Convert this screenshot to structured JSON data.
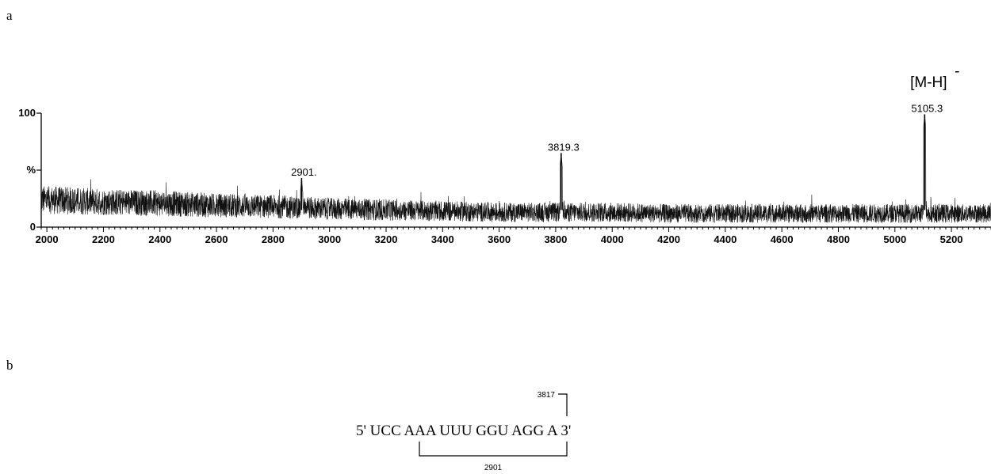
{
  "panels": {
    "a": "a",
    "b": "b"
  },
  "chart_data": {
    "type": "line",
    "title": "",
    "xlabel": "",
    "ylabel": "%",
    "xlim": [
      1980,
      5340
    ],
    "ylim": [
      0,
      100
    ],
    "x_ticks": [
      2000,
      2200,
      2400,
      2600,
      2800,
      3000,
      3200,
      3400,
      3600,
      3800,
      4000,
      4200,
      4400,
      4600,
      4800,
      5000,
      5200
    ],
    "y_ticks": [
      {
        "value": 0,
        "label": "0"
      },
      {
        "value": 100,
        "label": "100"
      }
    ],
    "y_mid_label": "%",
    "baseline": [
      {
        "x": 1980,
        "y": 24
      },
      {
        "x": 2100,
        "y": 23
      },
      {
        "x": 2200,
        "y": 22
      },
      {
        "x": 2400,
        "y": 21
      },
      {
        "x": 2600,
        "y": 19
      },
      {
        "x": 2800,
        "y": 18
      },
      {
        "x": 3000,
        "y": 16
      },
      {
        "x": 3200,
        "y": 15
      },
      {
        "x": 3400,
        "y": 14
      },
      {
        "x": 3600,
        "y": 13
      },
      {
        "x": 3800,
        "y": 13
      },
      {
        "x": 4000,
        "y": 13
      },
      {
        "x": 4200,
        "y": 12
      },
      {
        "x": 4400,
        "y": 12
      },
      {
        "x": 4600,
        "y": 12
      },
      {
        "x": 4800,
        "y": 12
      },
      {
        "x": 5000,
        "y": 12
      },
      {
        "x": 5200,
        "y": 12
      },
      {
        "x": 5340,
        "y": 12
      }
    ],
    "peaks": [
      {
        "x": 2901,
        "y": 43,
        "label": "2901."
      },
      {
        "x": 3819.3,
        "y": 65,
        "label": "3819.3"
      },
      {
        "x": 5105.3,
        "y": 99,
        "label": "5105.3"
      }
    ],
    "ion_annotation": {
      "text": "[M-H]",
      "superscript": "-",
      "x": 5105.3
    }
  },
  "scheme": {
    "sequence": {
      "five_prime": "5'",
      "groups": [
        "UCC",
        "AAA",
        "UUU",
        "GGU",
        "AGG",
        "A"
      ],
      "three_prime": "3'"
    },
    "fragments": [
      {
        "label": "3817",
        "position": "above"
      },
      {
        "label": "2901",
        "position": "below"
      }
    ]
  }
}
